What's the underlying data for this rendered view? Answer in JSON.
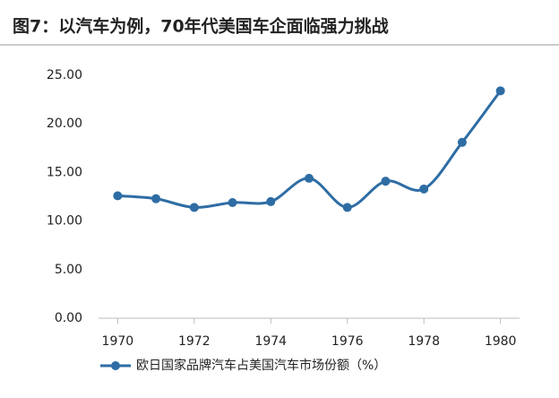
{
  "chart_data": {
    "type": "line",
    "title": "图7：以汽车为例，70年代美国车企面临强力挑战",
    "x": [
      1970,
      1971,
      1972,
      1973,
      1974,
      1975,
      1976,
      1977,
      1978,
      1979,
      1980
    ],
    "series": [
      {
        "name": "欧日国家品牌汽车占美国汽车市场份额（%）",
        "color": "#2e6da4",
        "values": [
          12.6,
          12.3,
          11.4,
          11.9,
          12.0,
          14.4,
          11.4,
          14.1,
          13.3,
          18.1,
          23.4
        ]
      }
    ],
    "xlim": [
      1969.5,
      1980.5
    ],
    "xticks": [
      1970,
      1972,
      1974,
      1976,
      1978,
      1980
    ],
    "ylim": [
      0,
      25
    ],
    "yticks": [
      {
        "value": 0,
        "label": "0.00"
      },
      {
        "value": 5,
        "label": "5.00"
      },
      {
        "value": 10,
        "label": "10.00"
      },
      {
        "value": 15,
        "label": "15.00"
      },
      {
        "value": 20,
        "label": "20.00"
      },
      {
        "value": 25,
        "label": "25.00"
      }
    ],
    "grid": false,
    "legend": "bottom"
  }
}
